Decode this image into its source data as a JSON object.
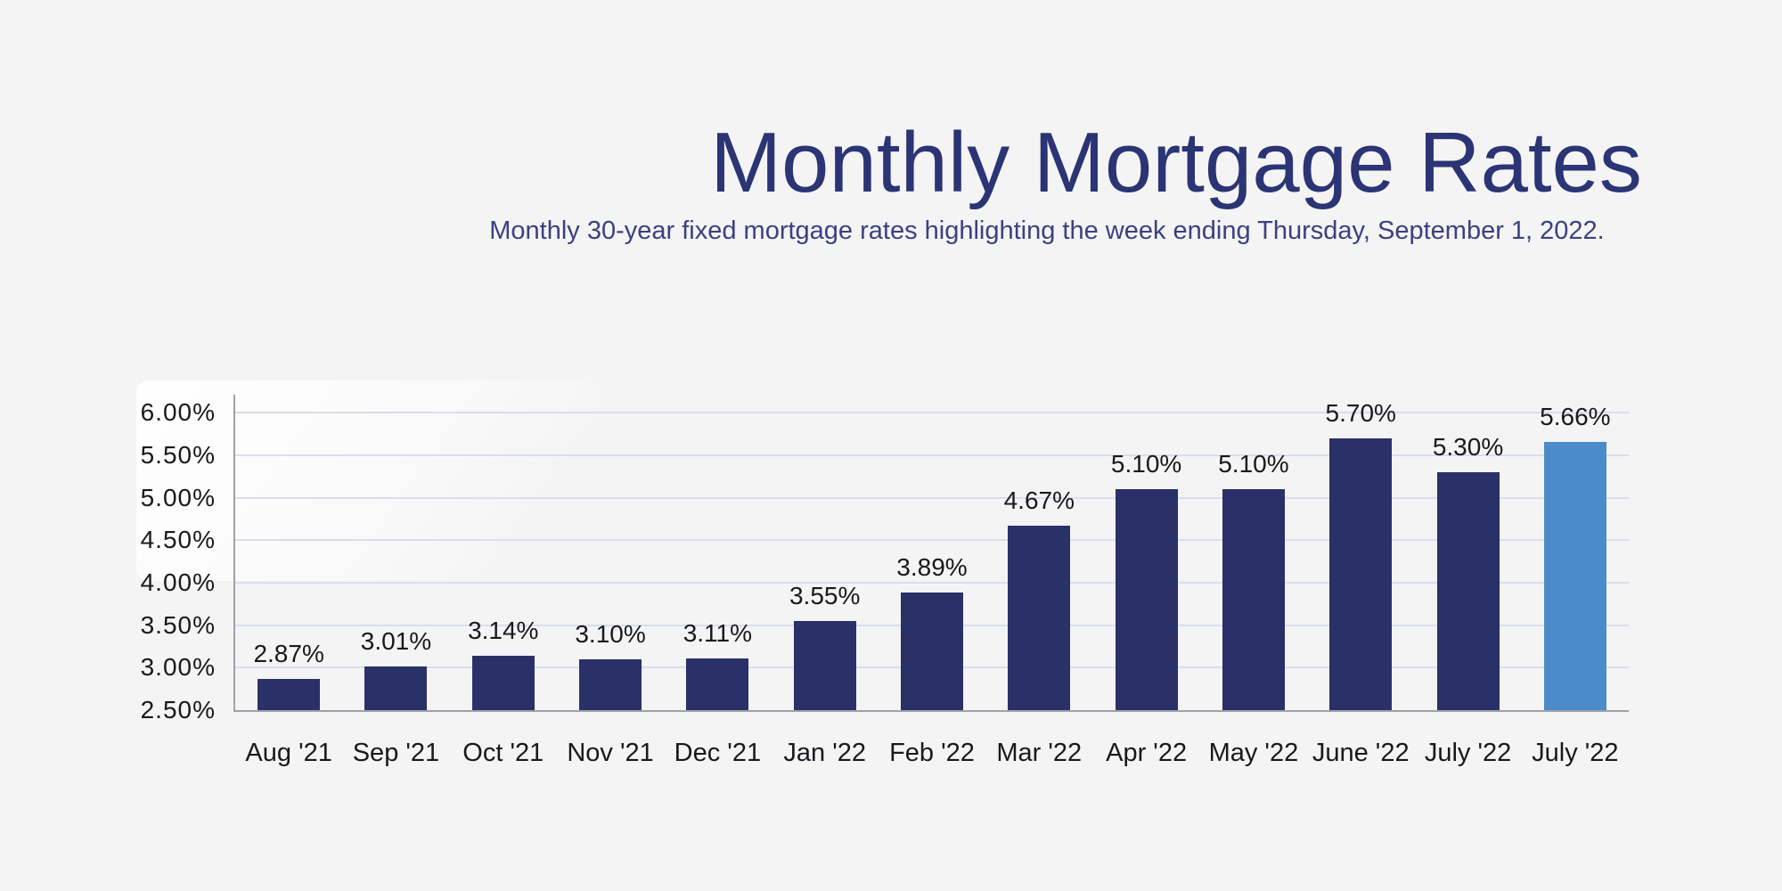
{
  "page": {
    "background_color": "#f4f4f5"
  },
  "header": {
    "title": "Monthly Mortgage Rates",
    "title_color": "#2b3474",
    "subtitle": "Monthly 30-year fixed mortgage rates highlighting the week ending Thursday, September 1, 2022.",
    "subtitle_color": "#3b4180"
  },
  "chart_data": {
    "type": "bar",
    "title": "Monthly Mortgage Rates",
    "subtitle": "Monthly 30-year fixed mortgage rates highlighting the week ending Thursday, September 1, 2022.",
    "categories": [
      "Aug '21",
      "Sep '21",
      "Oct '21",
      "Nov '21",
      "Dec '21",
      "Jan '22",
      "Feb '22",
      "Mar '22",
      "Apr '22",
      "May '22",
      "June '22",
      "July '22",
      "July '22"
    ],
    "values": [
      2.87,
      3.01,
      3.14,
      3.1,
      3.11,
      3.55,
      3.89,
      4.67,
      5.1,
      5.1,
      5.7,
      5.3,
      5.66
    ],
    "value_labels": [
      "2.87%",
      "3.01%",
      "3.14%",
      "3.10%",
      "3.11%",
      "3.55%",
      "3.89%",
      "4.67%",
      "5.10%",
      "5.10%",
      "5.70%",
      "5.30%",
      "5.66%"
    ],
    "xlabel": "",
    "ylabel": "",
    "ylim": [
      2.5,
      6.0
    ],
    "ytick_step": 0.5,
    "ytick_labels": [
      "2.50%",
      "3.00%",
      "3.50%",
      "4.00%",
      "4.50%",
      "5.00%",
      "5.50%",
      "6.00%"
    ],
    "grid": true,
    "legend": false,
    "bar_color": "#2a3068",
    "highlight_index": 12,
    "highlight_color": "#4c8bc9",
    "gridline_color": "#d9dded",
    "axis_color": "#a0a1a6",
    "tick_label_color": "#19191c",
    "highlighted_bar_meaning": "week ending Thursday, September 1, 2022"
  }
}
